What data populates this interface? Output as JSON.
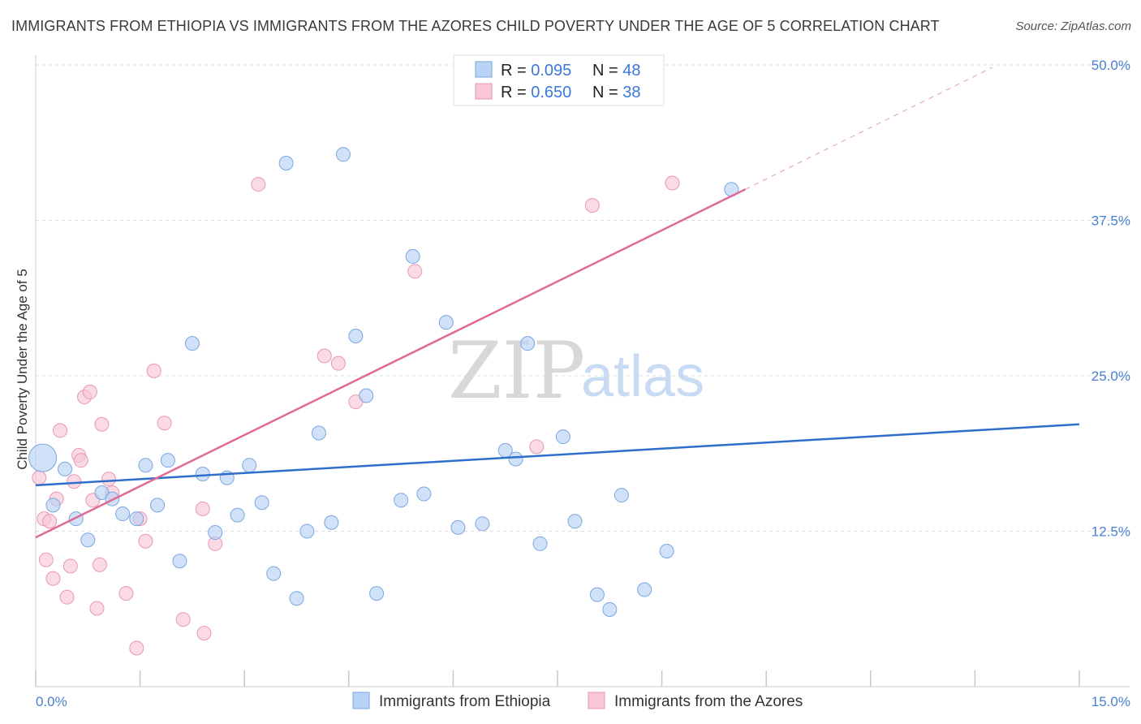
{
  "title": "IMMIGRANTS FROM ETHIOPIA VS IMMIGRANTS FROM THE AZORES CHILD POVERTY UNDER THE AGE OF 5 CORRELATION CHART",
  "source": "Source: ZipAtlas.com",
  "watermark": {
    "zip": "ZIP",
    "atlas": "atlas"
  },
  "colors": {
    "ethiopia_fill": "#b8d3f5",
    "ethiopia_stroke": "#7aa6e0",
    "ethiopia_line": "#2f6fcc",
    "azores_fill": "#f8c6d5",
    "azores_stroke": "#e898b2",
    "azores_line": "#e06a94",
    "tick": "#4a7fd0",
    "grid": "#dddddd"
  },
  "stats": {
    "ethiopia": {
      "r_label": "R = ",
      "r": "0.095",
      "n_label": "N = ",
      "n": "48"
    },
    "azores": {
      "r_label": "R = ",
      "r": "0.650",
      "n_label": "N = ",
      "n": "38"
    }
  },
  "chart_data": {
    "type": "scatter",
    "title": "IMMIGRANTS FROM ETHIOPIA VS IMMIGRANTS FROM THE AZORES CHILD POVERTY UNDER THE AGE OF 5 CORRELATION CHART",
    "xlabel": "",
    "ylabel": "Child Poverty Under the Age of 5",
    "xlim": [
      0,
      15
    ],
    "ylim": [
      0,
      50
    ],
    "x_tick_labels": [
      "0.0%",
      "15.0%"
    ],
    "y_ticks": [
      12.5,
      25.0,
      37.5,
      50.0
    ],
    "y_tick_labels": [
      "12.5%",
      "25.0%",
      "37.5%",
      "50.0%"
    ],
    "legend": [
      "Immigrants from Ethiopia",
      "Immigrants from the Azores"
    ],
    "series": [
      {
        "name": "Immigrants from Ethiopia",
        "r": 0.095,
        "n": 48,
        "trend": {
          "x": [
            0,
            15
          ],
          "y": [
            16.2,
            21.1
          ],
          "dashed_to": null
        },
        "points": [
          {
            "x": 0.1,
            "y": 18.4,
            "big": true
          },
          {
            "x": 0.25,
            "y": 14.6
          },
          {
            "x": 0.42,
            "y": 17.5
          },
          {
            "x": 0.58,
            "y": 13.5
          },
          {
            "x": 0.75,
            "y": 11.8
          },
          {
            "x": 0.95,
            "y": 15.6
          },
          {
            "x": 1.1,
            "y": 15.1
          },
          {
            "x": 1.25,
            "y": 13.9
          },
          {
            "x": 1.45,
            "y": 13.5
          },
          {
            "x": 1.58,
            "y": 17.8
          },
          {
            "x": 1.75,
            "y": 14.6
          },
          {
            "x": 1.9,
            "y": 18.2
          },
          {
            "x": 2.07,
            "y": 10.1
          },
          {
            "x": 2.25,
            "y": 27.6
          },
          {
            "x": 2.4,
            "y": 17.1
          },
          {
            "x": 2.58,
            "y": 12.4
          },
          {
            "x": 2.75,
            "y": 16.8
          },
          {
            "x": 2.9,
            "y": 13.8
          },
          {
            "x": 3.07,
            "y": 17.8
          },
          {
            "x": 3.25,
            "y": 14.8
          },
          {
            "x": 3.42,
            "y": 9.1
          },
          {
            "x": 3.6,
            "y": 42.1
          },
          {
            "x": 3.75,
            "y": 7.1
          },
          {
            "x": 3.9,
            "y": 12.5
          },
          {
            "x": 4.07,
            "y": 20.4
          },
          {
            "x": 4.25,
            "y": 13.2
          },
          {
            "x": 4.42,
            "y": 42.8
          },
          {
            "x": 4.6,
            "y": 28.2
          },
          {
            "x": 4.75,
            "y": 23.4
          },
          {
            "x": 4.9,
            "y": 7.5
          },
          {
            "x": 5.25,
            "y": 15.0
          },
          {
            "x": 5.42,
            "y": 34.6
          },
          {
            "x": 5.58,
            "y": 15.5
          },
          {
            "x": 5.9,
            "y": 29.3
          },
          {
            "x": 6.07,
            "y": 12.8
          },
          {
            "x": 6.42,
            "y": 13.1
          },
          {
            "x": 6.75,
            "y": 19.0
          },
          {
            "x": 6.9,
            "y": 18.3
          },
          {
            "x": 7.07,
            "y": 27.6
          },
          {
            "x": 7.25,
            "y": 11.5
          },
          {
            "x": 7.58,
            "y": 20.1
          },
          {
            "x": 7.75,
            "y": 13.3
          },
          {
            "x": 8.07,
            "y": 7.4
          },
          {
            "x": 8.25,
            "y": 6.2
          },
          {
            "x": 8.42,
            "y": 15.4
          },
          {
            "x": 8.75,
            "y": 7.8
          },
          {
            "x": 9.07,
            "y": 10.9
          },
          {
            "x": 10.0,
            "y": 40.0
          }
        ]
      },
      {
        "name": "Immigrants from the Azores",
        "r": 0.65,
        "n": 38,
        "trend": {
          "x": [
            0,
            10.2
          ],
          "y": [
            12.0,
            40.0
          ],
          "dashed_to": {
            "x": 13.75,
            "y": 49.8
          }
        },
        "points": [
          {
            "x": 0.05,
            "y": 16.8
          },
          {
            "x": 0.12,
            "y": 13.5
          },
          {
            "x": 0.15,
            "y": 10.2
          },
          {
            "x": 0.2,
            "y": 13.3
          },
          {
            "x": 0.25,
            "y": 8.7
          },
          {
            "x": 0.3,
            "y": 15.1
          },
          {
            "x": 0.35,
            "y": 20.6
          },
          {
            "x": 0.45,
            "y": 7.2
          },
          {
            "x": 0.5,
            "y": 9.7
          },
          {
            "x": 0.55,
            "y": 16.5
          },
          {
            "x": 0.62,
            "y": 18.6
          },
          {
            "x": 0.65,
            "y": 18.2
          },
          {
            "x": 0.7,
            "y": 23.3
          },
          {
            "x": 0.78,
            "y": 23.7
          },
          {
            "x": 0.82,
            "y": 15.0
          },
          {
            "x": 0.88,
            "y": 6.3
          },
          {
            "x": 0.92,
            "y": 9.8
          },
          {
            "x": 0.95,
            "y": 21.1
          },
          {
            "x": 1.05,
            "y": 16.7
          },
          {
            "x": 1.1,
            "y": 15.6
          },
          {
            "x": 1.3,
            "y": 7.5
          },
          {
            "x": 1.45,
            "y": 3.1
          },
          {
            "x": 1.5,
            "y": 13.5
          },
          {
            "x": 1.58,
            "y": 11.7
          },
          {
            "x": 1.7,
            "y": 25.4
          },
          {
            "x": 1.85,
            "y": 21.2
          },
          {
            "x": 2.12,
            "y": 5.4
          },
          {
            "x": 2.4,
            "y": 14.3
          },
          {
            "x": 2.42,
            "y": 4.3
          },
          {
            "x": 2.58,
            "y": 11.5
          },
          {
            "x": 3.2,
            "y": 40.4
          },
          {
            "x": 4.15,
            "y": 26.6
          },
          {
            "x": 4.35,
            "y": 26.0
          },
          {
            "x": 4.6,
            "y": 22.9
          },
          {
            "x": 5.45,
            "y": 33.4
          },
          {
            "x": 7.2,
            "y": 19.3
          },
          {
            "x": 8.0,
            "y": 38.7
          },
          {
            "x": 9.15,
            "y": 40.5
          }
        ]
      }
    ]
  }
}
